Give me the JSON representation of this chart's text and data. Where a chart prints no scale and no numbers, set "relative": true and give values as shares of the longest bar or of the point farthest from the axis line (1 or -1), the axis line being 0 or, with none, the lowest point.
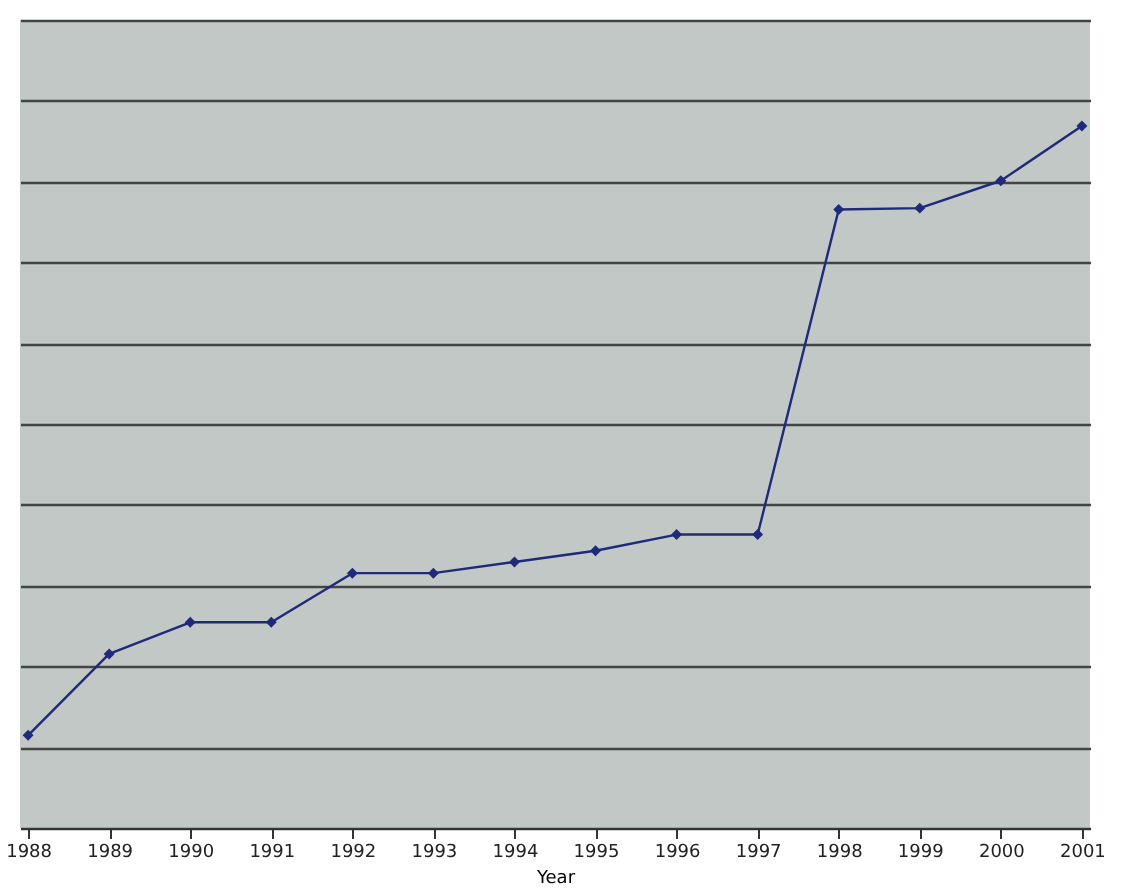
{
  "chart_data": {
    "type": "line",
    "xlabel": "Year",
    "relative": true,
    "grid": "y",
    "marker": "diamond",
    "line_style": "solid",
    "categories": [
      "1988",
      "1989",
      "1990",
      "1991",
      "1992",
      "1993",
      "1994",
      "1995",
      "1996",
      "1997",
      "1998",
      "1999",
      "2000",
      "2001"
    ],
    "series": [
      {
        "color": "#1f2a7a",
        "values": [
          0.132,
          0.248,
          0.293,
          0.293,
          0.363,
          0.363,
          0.379,
          0.395,
          0.418,
          0.418,
          0.881,
          0.883,
          0.922,
          1.0
        ]
      }
    ]
  }
}
